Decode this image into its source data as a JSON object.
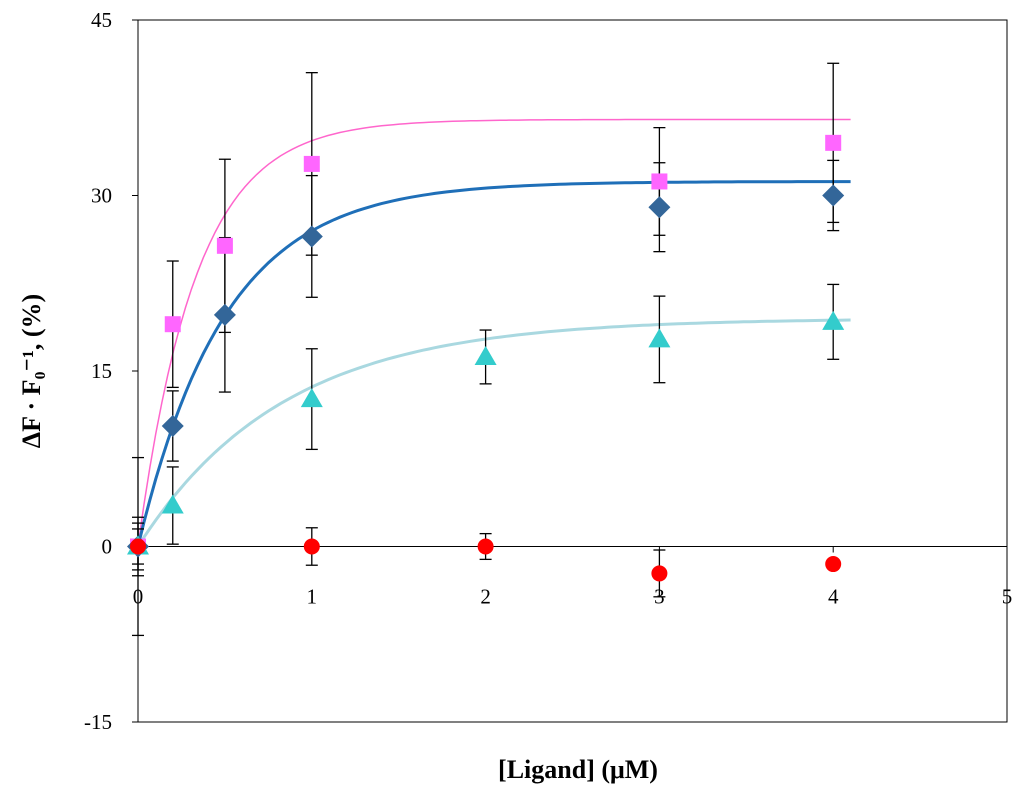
{
  "chart_data": {
    "type": "scatter",
    "title": "",
    "xlabel": "[Ligand] (μM)",
    "ylabel": "ΔF · F₀⁻¹, (%)",
    "xlim": [
      0,
      5
    ],
    "ylim": [
      -15,
      45
    ],
    "x_ticks": [
      "0",
      "1",
      "2",
      "3",
      "4",
      "5"
    ],
    "y_ticks": [
      "-15",
      "0",
      "15",
      "30",
      "45"
    ],
    "grid": false,
    "legend": "none",
    "series": [
      {
        "marker": "square",
        "color": "#ff66ff",
        "curve_color": "#ff66cc",
        "x": [
          0,
          0.2,
          0.5,
          1,
          3,
          4
        ],
        "y": [
          0,
          19,
          25.7,
          32.7,
          31.2,
          34.5
        ],
        "err": [
          2.5,
          5.4,
          7.4,
          7.8,
          4.6,
          6.8
        ],
        "fit": {
          "bmax": 36.5,
          "k": 3.0
        }
      },
      {
        "marker": "diamond",
        "color": "#336699",
        "curve_color": "#1f6fb8",
        "x": [
          0,
          0.2,
          0.5,
          1,
          3,
          4
        ],
        "y": [
          0,
          10.3,
          19.8,
          26.5,
          29,
          30
        ],
        "err": [
          2,
          3,
          6.6,
          5.2,
          3.8,
          3
        ],
        "fit": {
          "bmax": 31.2,
          "k": 2.0
        }
      },
      {
        "marker": "triangle",
        "color": "#33cccc",
        "curve_color": "#a9d8e0",
        "x": [
          0,
          0.2,
          1,
          2,
          3,
          4
        ],
        "y": [
          0,
          3.5,
          12.6,
          16.2,
          17.7,
          19.2
        ],
        "err": [
          1.5,
          3.3,
          4.3,
          2.3,
          3.7,
          3.2
        ],
        "fit": {
          "bmax": 19.5,
          "k": 1.2
        }
      },
      {
        "marker": "circle",
        "color": "#ff0000",
        "x": [
          0,
          1,
          2,
          3,
          4
        ],
        "y": [
          0,
          0,
          0,
          -2.3,
          -1.5
        ],
        "err": [
          7.6,
          1.6,
          1.1,
          2,
          0
        ]
      }
    ]
  }
}
